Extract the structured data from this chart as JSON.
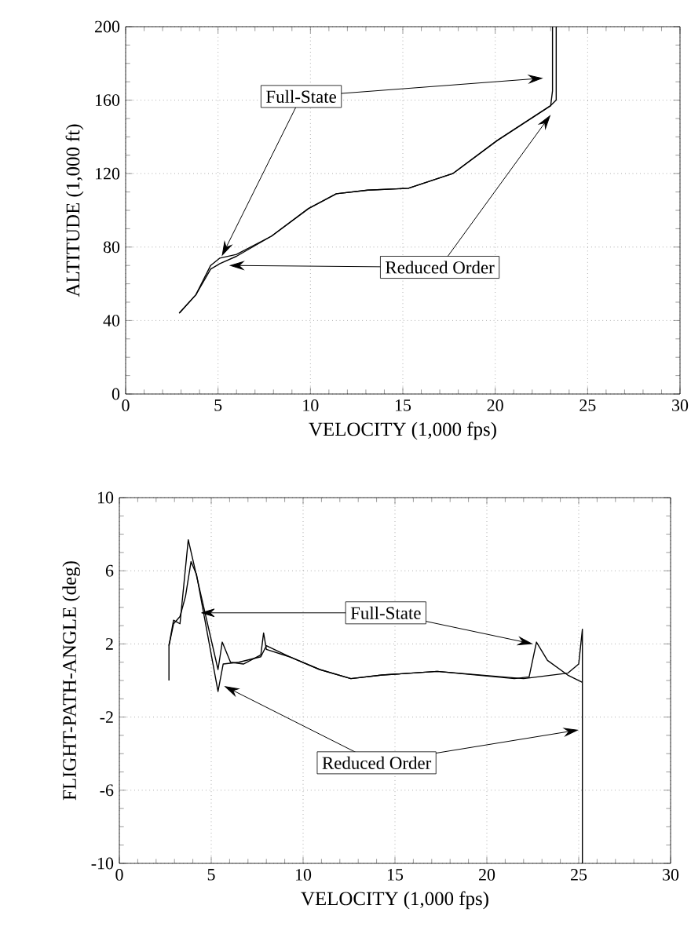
{
  "chart_data": [
    {
      "type": "line",
      "xlabel": "VELOCITY (1,000 fps)",
      "ylabel": "ALTITUDE (1,000 ft)",
      "xlim": [
        0,
        30
      ],
      "ylim": [
        0,
        200
      ],
      "xticks": [
        0,
        5,
        10,
        15,
        20,
        25,
        30
      ],
      "yticks": [
        0,
        40,
        80,
        120,
        160,
        200
      ],
      "grid": true,
      "line_style": "solid",
      "marker": "none",
      "series": [
        {
          "name": "Full-State",
          "color": "#000000",
          "x": [
            2.9,
            3.8,
            4.6,
            5.1,
            6.0,
            7.9,
            9.9,
            11.4,
            13.1,
            15.3,
            17.7,
            20.1,
            23.0,
            23.1,
            23.1
          ],
          "values": [
            44,
            54,
            70,
            74,
            76,
            86,
            101,
            109,
            111,
            112,
            120,
            138,
            157,
            165,
            200
          ]
        },
        {
          "name": "Reduced Order",
          "color": "#000000",
          "x": [
            2.9,
            3.8,
            4.6,
            5.1,
            6.0,
            7.9,
            9.9,
            11.4,
            13.1,
            15.3,
            17.7,
            20.1,
            23.0,
            23.3,
            23.3
          ],
          "values": [
            44,
            54,
            68,
            71,
            75,
            86,
            101,
            109,
            111,
            112,
            120,
            138,
            157,
            160,
            200
          ]
        }
      ]
    },
    {
      "type": "line",
      "xlabel": "VELOCITY (1,000 fps)",
      "ylabel": "FLIGHT-PATH-ANGLE (deg)",
      "xlim": [
        0,
        30
      ],
      "ylim": [
        -10,
        10
      ],
      "xticks": [
        0,
        5,
        10,
        15,
        20,
        25,
        30
      ],
      "yticks": [
        -10,
        -6,
        -2,
        2,
        6,
        10
      ],
      "grid": true,
      "line_style": "solid",
      "marker": "none",
      "series": [
        {
          "name": "Full-State",
          "color": "#000000",
          "x": [
            2.7,
            2.7,
            2.95,
            3.3,
            3.75,
            4.0,
            5.37,
            5.6,
            6.05,
            6.75,
            7.7,
            7.85,
            8.0,
            9.25,
            10.9,
            12.6,
            14.3,
            17.3,
            21.5,
            22.3,
            22.7,
            23.3,
            24.4,
            25.2
          ],
          "values": [
            0,
            1.9,
            3.3,
            3.1,
            7.7,
            6.6,
            0.6,
            2.1,
            1.0,
            0.9,
            1.4,
            2.6,
            1.7,
            1.3,
            0.6,
            0.1,
            0.3,
            0.5,
            0.1,
            0.2,
            2.1,
            1.1,
            0.3,
            -0.1
          ]
        },
        {
          "name": "Reduced Order",
          "color": "#000000",
          "x": [
            2.7,
            2.95,
            3.3,
            3.6,
            3.9,
            4.2,
            5.37,
            5.65,
            6.5,
            7.7,
            8.0,
            9.25,
            10.9,
            12.6,
            14.3,
            17.3,
            22.0,
            24.4,
            25.0,
            25.2,
            25.2
          ],
          "values": [
            1.9,
            3.1,
            3.5,
            4.6,
            6.5,
            5.8,
            -0.6,
            0.9,
            1.0,
            1.3,
            1.9,
            1.3,
            0.6,
            0.1,
            0.3,
            0.5,
            0.1,
            0.4,
            0.9,
            2.8,
            -10
          ]
        }
      ]
    }
  ]
}
